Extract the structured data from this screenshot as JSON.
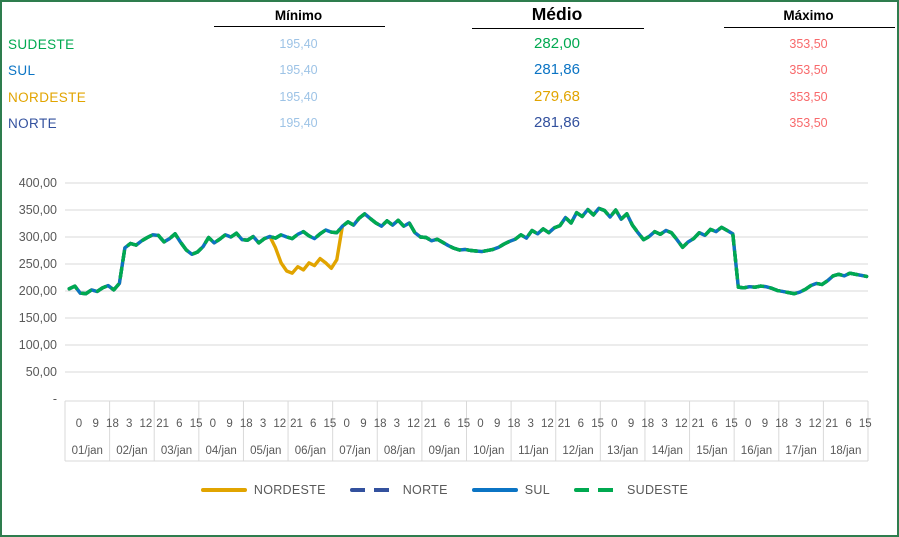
{
  "table": {
    "columns": [
      {
        "label": "Mínimo"
      },
      {
        "label": "Médio"
      },
      {
        "label": "Máximo"
      }
    ],
    "min_value_color": "#9DC3E6",
    "max_value_color": "#F8696B",
    "rows": [
      {
        "region": "SUDESTE",
        "color": "#00A950",
        "min": "195,40",
        "avg": "282,00",
        "max": "353,50"
      },
      {
        "region": "SUL",
        "color": "#0B74C4",
        "min": "195,40",
        "avg": "281,86",
        "max": "353,50"
      },
      {
        "region": "NORDESTE",
        "color": "#E1A400",
        "min": "195,40",
        "avg": "279,68",
        "max": "353,50"
      },
      {
        "region": "NORTE",
        "color": "#33519E",
        "min": "195,40",
        "avg": "281,86",
        "max": "353,50"
      }
    ]
  },
  "chart_data": {
    "type": "line",
    "title": "",
    "xlabel": "",
    "ylabel": "",
    "ylim": [
      0,
      400
    ],
    "grid": true,
    "grid_color": "#D9D9D9",
    "axis_text_color": "#595959",
    "y_tick_labels": [
      "400,00",
      "350,00",
      "300,00",
      "250,00",
      "200,00",
      "150,00",
      "100,00",
      "50,00",
      "-"
    ],
    "y_tick_values": [
      400,
      350,
      300,
      250,
      200,
      150,
      100,
      50,
      0
    ],
    "days": [
      "01/jan",
      "02/jan",
      "03/jan",
      "04/jan",
      "05/jan",
      "06/jan",
      "07/jan",
      "08/jan",
      "09/jan",
      "10/jan",
      "11/jan",
      "12/jan",
      "13/jan",
      "14/jan",
      "15/jan",
      "16/jan",
      "17/jan",
      "18/jan"
    ],
    "hour_label_cycle": [
      "0",
      "9",
      "18",
      "3",
      "12",
      "21",
      "6",
      "15"
    ],
    "hours_per_point": 3,
    "series": [
      {
        "name": "NORDESTE",
        "color": "#E1A400",
        "style": "solid",
        "values": [
          204,
          209,
          196,
          195,
          202,
          199,
          206,
          210,
          202,
          214,
          280,
          288,
          285,
          293,
          299,
          304,
          303,
          291,
          297,
          306,
          290,
          276,
          268,
          272,
          282,
          299,
          289,
          296,
          304,
          300,
          307,
          295,
          294,
          301,
          289,
          297,
          301,
          280,
          252,
          237,
          233,
          245,
          239,
          252,
          247,
          260,
          252,
          242,
          258,
          320,
          328,
          322,
          335,
          343,
          334,
          326,
          320,
          330,
          322,
          331,
          320,
          326,
          308,
          300,
          299,
          293,
          296,
          290,
          284,
          279,
          276,
          277,
          275,
          274,
          273,
          275,
          277,
          281,
          287,
          292,
          296,
          304,
          298,
          312,
          306,
          315,
          308,
          317,
          321,
          336,
          326,
          345,
          338,
          351,
          341,
          353,
          349,
          337,
          350,
          333,
          343,
          322,
          308,
          295,
          301,
          310,
          305,
          312,
          308,
          295,
          281,
          291,
          297,
          308,
          303,
          314,
          310,
          318,
          312,
          306,
          207,
          206,
          208,
          207,
          209,
          208,
          205,
          201,
          199,
          197,
          195,
          198,
          203,
          210,
          214,
          212,
          219,
          228,
          231,
          228,
          233,
          231,
          229,
          227
        ]
      },
      {
        "name": "NORTE",
        "color": "#33519E",
        "style": "dashed",
        "values": [
          204,
          209,
          196,
          195,
          202,
          199,
          206,
          210,
          202,
          214,
          280,
          288,
          285,
          293,
          299,
          304,
          303,
          291,
          297,
          306,
          290,
          276,
          268,
          272,
          282,
          299,
          289,
          296,
          304,
          300,
          307,
          295,
          294,
          301,
          289,
          297,
          301,
          298,
          304,
          300,
          297,
          305,
          310,
          302,
          297,
          306,
          313,
          309,
          308,
          320,
          328,
          322,
          335,
          343,
          334,
          326,
          320,
          330,
          322,
          331,
          320,
          326,
          308,
          300,
          299,
          293,
          296,
          290,
          284,
          279,
          276,
          277,
          275,
          274,
          273,
          275,
          277,
          281,
          287,
          292,
          296,
          304,
          298,
          312,
          306,
          315,
          308,
          317,
          321,
          336,
          326,
          345,
          338,
          351,
          341,
          353,
          349,
          337,
          350,
          333,
          343,
          322,
          308,
          295,
          301,
          310,
          305,
          312,
          308,
          295,
          281,
          291,
          297,
          308,
          303,
          314,
          310,
          318,
          312,
          306,
          207,
          206,
          208,
          207,
          209,
          208,
          205,
          201,
          199,
          197,
          195,
          198,
          203,
          210,
          214,
          212,
          219,
          228,
          231,
          228,
          233,
          231,
          229,
          227
        ]
      },
      {
        "name": "SUL",
        "color": "#0B74C4",
        "style": "solid",
        "values": [
          204,
          209,
          196,
          195,
          202,
          199,
          206,
          210,
          202,
          214,
          280,
          288,
          285,
          293,
          299,
          304,
          303,
          291,
          297,
          306,
          290,
          276,
          268,
          272,
          282,
          299,
          289,
          296,
          304,
          300,
          307,
          295,
          294,
          301,
          289,
          297,
          301,
          298,
          304,
          300,
          297,
          305,
          310,
          302,
          297,
          306,
          313,
          309,
          308,
          320,
          328,
          322,
          335,
          343,
          334,
          326,
          320,
          330,
          322,
          331,
          320,
          326,
          308,
          300,
          299,
          293,
          296,
          290,
          284,
          279,
          276,
          277,
          275,
          274,
          273,
          275,
          277,
          281,
          287,
          292,
          296,
          304,
          298,
          312,
          306,
          315,
          308,
          317,
          321,
          336,
          326,
          345,
          338,
          351,
          341,
          353,
          349,
          337,
          350,
          333,
          343,
          322,
          308,
          295,
          301,
          310,
          305,
          312,
          308,
          295,
          281,
          291,
          297,
          308,
          303,
          314,
          310,
          318,
          312,
          306,
          207,
          206,
          208,
          207,
          209,
          208,
          205,
          201,
          199,
          197,
          195,
          198,
          203,
          210,
          214,
          212,
          219,
          228,
          231,
          228,
          233,
          231,
          229,
          227
        ]
      },
      {
        "name": "SUDESTE",
        "color": "#00A950",
        "style": "dashed",
        "values": [
          204,
          209,
          196,
          195,
          202,
          199,
          206,
          210,
          202,
          214,
          280,
          288,
          285,
          293,
          299,
          304,
          303,
          291,
          297,
          306,
          290,
          276,
          268,
          272,
          282,
          299,
          289,
          296,
          304,
          300,
          307,
          295,
          294,
          301,
          289,
          297,
          301,
          298,
          304,
          300,
          297,
          305,
          310,
          302,
          297,
          306,
          313,
          309,
          308,
          320,
          328,
          322,
          335,
          343,
          334,
          326,
          320,
          330,
          322,
          331,
          320,
          326,
          308,
          300,
          299,
          293,
          296,
          290,
          284,
          279,
          276,
          277,
          275,
          274,
          273,
          275,
          277,
          281,
          287,
          292,
          296,
          304,
          298,
          312,
          306,
          315,
          308,
          317,
          321,
          336,
          326,
          345,
          338,
          351,
          341,
          353,
          349,
          337,
          350,
          333,
          343,
          322,
          308,
          295,
          301,
          310,
          305,
          312,
          308,
          295,
          281,
          291,
          297,
          308,
          303,
          314,
          310,
          318,
          312,
          306,
          207,
          206,
          208,
          207,
          209,
          208,
          205,
          201,
          199,
          197,
          195,
          198,
          203,
          210,
          214,
          212,
          219,
          228,
          231,
          228,
          233,
          231,
          229,
          227
        ]
      }
    ],
    "legend_position": "bottom"
  },
  "legend": {
    "items": [
      {
        "label": "NORDESTE",
        "color": "#E1A400",
        "style": "solid"
      },
      {
        "label": "NORTE",
        "color": "#33519E",
        "style": "dashed"
      },
      {
        "label": "SUL",
        "color": "#0B74C4",
        "style": "solid"
      },
      {
        "label": "SUDESTE",
        "color": "#00A950",
        "style": "dashed"
      }
    ]
  },
  "window_border_color": "#2E7D4E"
}
